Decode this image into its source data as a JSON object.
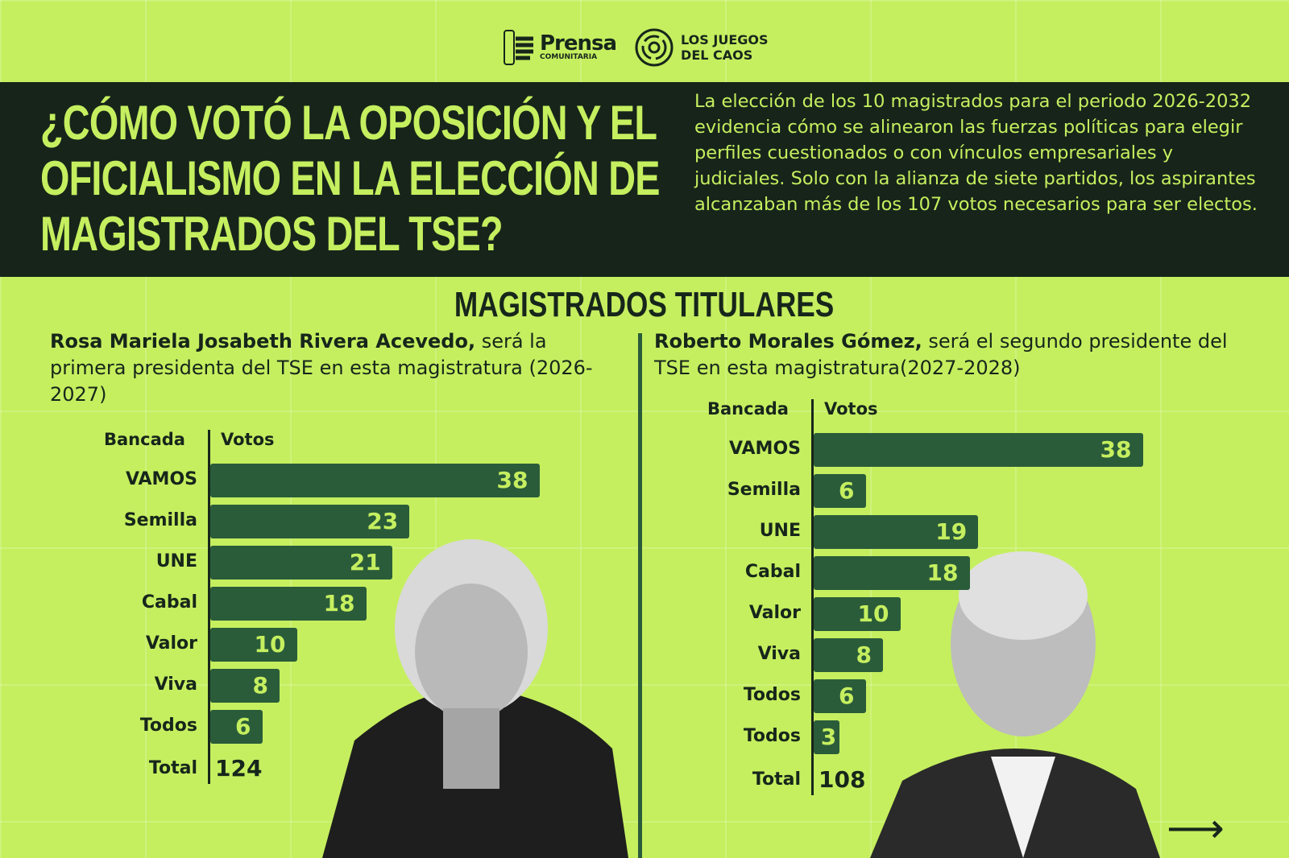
{
  "logos": {
    "prensa_title": "Prensa",
    "prensa_sub": "COMUNITARIA",
    "juegos": "LOS JUEGOS",
    "juegos2": "DEL CAOS"
  },
  "title": "¿CÓMO VOTÓ LA OPOSICIÓN Y EL OFICIALISMO EN LA ELECCIÓN DE MAGISTRADOS DEL TSE?",
  "description": "La elección de los 10 magistrados para el periodo 2026-2032 evidencia cómo se alinearon las fuerzas políticas para elegir perfiles cuestionados o con vínculos empresariales y judiciales. Solo con la alianza de siete partidos, los aspirantes alcanzaban más de los 107 votos necesarios para ser electos.",
  "section": "MAGISTRADOS TITULARES",
  "colors": {
    "background": "#c5ef5f",
    "band": "#17241a",
    "bar": "#2a5c3a"
  },
  "chart_data": [
    {
      "type": "bar",
      "orientation": "horizontal",
      "name_bold": "Rosa Mariela Josabeth Rivera Acevedo,",
      "intro": " será la primera presidenta del TSE en esta magistratura (2026-2027)",
      "col_category": "Bancada",
      "col_value": "Votos",
      "categories": [
        "VAMOS",
        "Semilla",
        "UNE",
        "Cabal",
        "Valor",
        "Viva",
        "Todos"
      ],
      "values": [
        38,
        23,
        21,
        18,
        10,
        8,
        6
      ],
      "total_label": "Total",
      "total": "124"
    },
    {
      "type": "bar",
      "orientation": "horizontal",
      "name_bold": "Roberto Morales Gómez,",
      "intro": " será el segundo presidente del TSE en esta magistratura(2027-2028)",
      "col_category": "Bancada",
      "col_value": "Votos",
      "categories": [
        "VAMOS",
        "Semilla",
        "UNE",
        "Cabal",
        "Valor",
        "Viva",
        "Todos",
        "Todos"
      ],
      "values": [
        38,
        6,
        19,
        18,
        10,
        8,
        6,
        3
      ],
      "total_label": "Total",
      "total": "108"
    }
  ],
  "next_icon": "arrow-right-icon"
}
